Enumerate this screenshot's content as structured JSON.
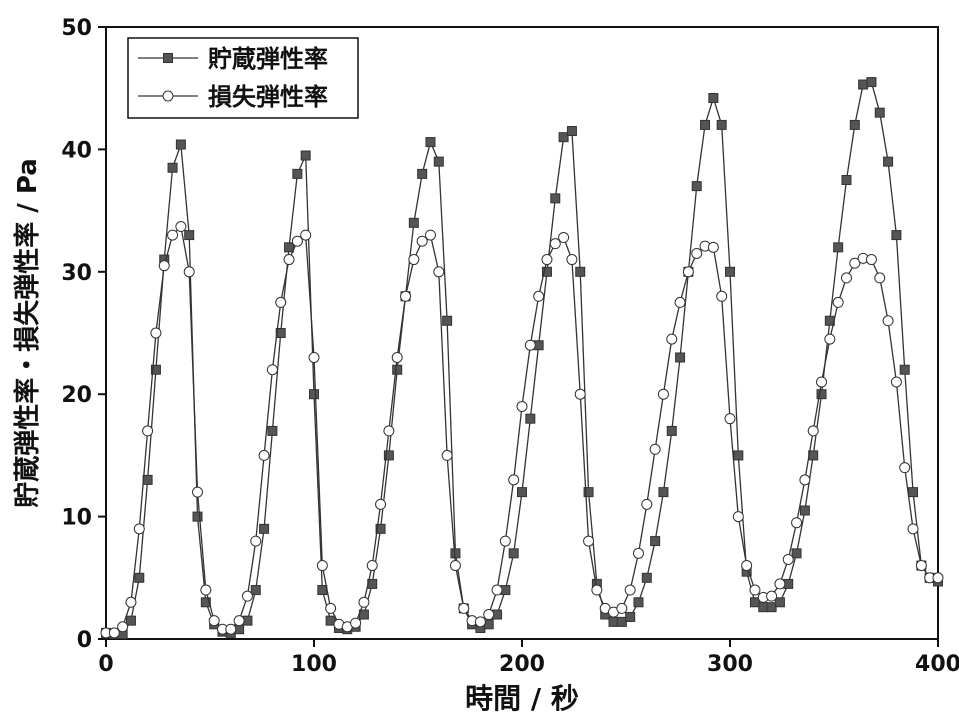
{
  "chart_data": {
    "type": "line",
    "x_label": "時間 / 秒",
    "y_label": "貯蔵弾性率・損失弾性率 / Pa",
    "x": [
      0,
      4,
      8,
      12,
      16,
      20,
      24,
      28,
      32,
      36,
      40,
      44,
      48,
      52,
      56,
      60,
      64,
      68,
      72,
      76,
      80,
      84,
      88,
      92,
      96,
      100,
      104,
      108,
      112,
      116,
      120,
      124,
      128,
      132,
      136,
      140,
      144,
      148,
      152,
      156,
      160,
      164,
      168,
      172,
      176,
      180,
      184,
      188,
      192,
      196,
      200,
      204,
      208,
      212,
      216,
      220,
      224,
      228,
      232,
      236,
      240,
      244,
      248,
      252,
      256,
      260,
      264,
      268,
      272,
      276,
      280,
      284,
      288,
      292,
      296,
      300,
      304,
      308,
      312,
      316,
      320,
      324,
      328,
      332,
      336,
      340,
      344,
      348,
      352,
      356,
      360,
      364,
      368,
      372,
      376,
      380,
      384,
      388,
      392,
      396,
      400
    ],
    "series": [
      {
        "name": "貯蔵弾性率",
        "color": "#333333",
        "marker": "square",
        "values": [
          0.5,
          0.4,
          0.4,
          1.5,
          5,
          13,
          22,
          31,
          38.5,
          40.4,
          33,
          10,
          3,
          1.2,
          0.6,
          0.5,
          0.8,
          1.5,
          4,
          9,
          17,
          25,
          32,
          38,
          39.5,
          20,
          4,
          1.5,
          0.9,
          0.8,
          1,
          2,
          4.5,
          9,
          15,
          22,
          28,
          34,
          38,
          40.6,
          39,
          26,
          7,
          2.5,
          1.2,
          0.9,
          1.2,
          2,
          4,
          7,
          12,
          18,
          24,
          30,
          36,
          41,
          41.5,
          30,
          12,
          4.5,
          2,
          1.4,
          1.4,
          1.8,
          3,
          5,
          8,
          12,
          17,
          23,
          30,
          37,
          42,
          44.2,
          42,
          30,
          15,
          5.5,
          3,
          2.6,
          2.6,
          3,
          4.5,
          7,
          10.5,
          15,
          20,
          26,
          32,
          37.5,
          42,
          45.3,
          45.5,
          43,
          39,
          33,
          22,
          12,
          6,
          5,
          4.7
        ]
      },
      {
        "name": "損失弾性率",
        "color": "#333333",
        "marker": "circle",
        "values": [
          0.5,
          0.5,
          1,
          3,
          9,
          17,
          25,
          30.5,
          33,
          33.7,
          30,
          12,
          4,
          1.5,
          0.8,
          0.8,
          1.5,
          3.5,
          8,
          15,
          22,
          27.5,
          31,
          32.5,
          33,
          23,
          6,
          2.5,
          1.2,
          1,
          1.3,
          3,
          6,
          11,
          17,
          23,
          28,
          31,
          32.5,
          33,
          30,
          15,
          6,
          2.5,
          1.5,
          1.4,
          2,
          4,
          8,
          13,
          19,
          24,
          28,
          31,
          32.3,
          32.8,
          31,
          20,
          8,
          4,
          2.5,
          2.2,
          2.5,
          4,
          7,
          11,
          15.5,
          20,
          24.5,
          27.5,
          30,
          31.5,
          32.1,
          32,
          28,
          18,
          10,
          6,
          4,
          3.4,
          3.5,
          4.5,
          6.5,
          9.5,
          13,
          17,
          21,
          24.5,
          27.5,
          29.5,
          30.7,
          31.1,
          31,
          29.5,
          26,
          21,
          14,
          9,
          6,
          5,
          5
        ]
      }
    ],
    "xlim": [
      0,
      400
    ],
    "xticks": [
      0,
      100,
      200,
      300,
      400
    ],
    "ylim": [
      0,
      50
    ],
    "yticks": [
      0,
      10,
      20,
      30,
      40,
      50
    ],
    "legend": "top-left"
  }
}
